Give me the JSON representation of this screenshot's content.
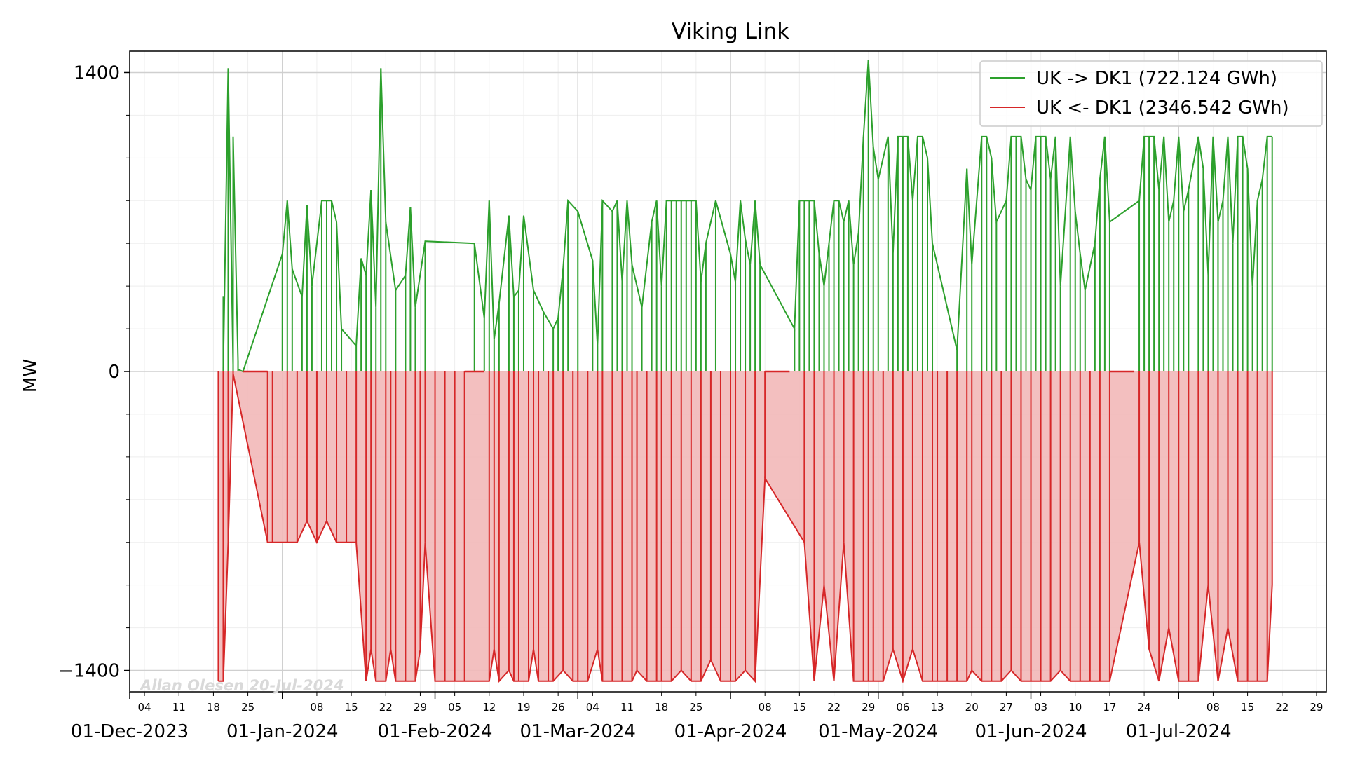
{
  "chart_data": {
    "type": "line",
    "title": "Viking Link",
    "ylabel": "MW",
    "xlabel": "",
    "ylim": [
      -1500,
      1500
    ],
    "xlim": [
      "2023-12-01",
      "2024-07-31"
    ],
    "yticks": [
      -1400,
      0,
      1400
    ],
    "ytick_labels": [
      "−1400",
      "0",
      "1400"
    ],
    "grid": true,
    "legend_position": "top-right",
    "watermark": "Allan Olesen 20-Jul-2024",
    "major_ticks": [
      {
        "date": "2023-12-01",
        "label": "01-Dec-2023"
      },
      {
        "date": "2024-01-01",
        "label": "01-Jan-2024"
      },
      {
        "date": "2024-02-01",
        "label": "01-Feb-2024"
      },
      {
        "date": "2024-03-01",
        "label": "01-Mar-2024"
      },
      {
        "date": "2024-04-01",
        "label": "01-Apr-2024"
      },
      {
        "date": "2024-05-01",
        "label": "01-May-2024"
      },
      {
        "date": "2024-06-01",
        "label": "01-Jun-2024"
      },
      {
        "date": "2024-07-01",
        "label": "01-Jul-2024"
      }
    ],
    "minor_ticks": [
      {
        "date": "2023-12-04",
        "label": "04"
      },
      {
        "date": "2023-12-11",
        "label": "11"
      },
      {
        "date": "2023-12-18",
        "label": "18"
      },
      {
        "date": "2023-12-25",
        "label": "25"
      },
      {
        "date": "2024-01-08",
        "label": "08"
      },
      {
        "date": "2024-01-15",
        "label": "15"
      },
      {
        "date": "2024-01-22",
        "label": "22"
      },
      {
        "date": "2024-01-29",
        "label": "29"
      },
      {
        "date": "2024-02-05",
        "label": "05"
      },
      {
        "date": "2024-02-12",
        "label": "12"
      },
      {
        "date": "2024-02-19",
        "label": "19"
      },
      {
        "date": "2024-02-26",
        "label": "26"
      },
      {
        "date": "2024-03-04",
        "label": "04"
      },
      {
        "date": "2024-03-11",
        "label": "11"
      },
      {
        "date": "2024-03-18",
        "label": "18"
      },
      {
        "date": "2024-03-25",
        "label": "25"
      },
      {
        "date": "2024-04-08",
        "label": "08"
      },
      {
        "date": "2024-04-15",
        "label": "15"
      },
      {
        "date": "2024-04-22",
        "label": "22"
      },
      {
        "date": "2024-04-29",
        "label": "29"
      },
      {
        "date": "2024-05-06",
        "label": "06"
      },
      {
        "date": "2024-05-13",
        "label": "13"
      },
      {
        "date": "2024-05-20",
        "label": "20"
      },
      {
        "date": "2024-05-27",
        "label": "27"
      },
      {
        "date": "2024-06-03",
        "label": "03"
      },
      {
        "date": "2024-06-10",
        "label": "10"
      },
      {
        "date": "2024-06-17",
        "label": "17"
      },
      {
        "date": "2024-06-24",
        "label": "24"
      },
      {
        "date": "2024-07-08",
        "label": "08"
      },
      {
        "date": "2024-07-15",
        "label": "15"
      },
      {
        "date": "2024-07-22",
        "label": "22"
      },
      {
        "date": "2024-07-29",
        "label": "29"
      }
    ],
    "series": [
      {
        "name": "UK -> DK1 (722.124 GWh)",
        "color": "#2ca02c",
        "x": [
          "2023-12-20",
          "2023-12-20",
          "2023-12-21",
          "2023-12-22",
          "2023-12-22",
          "2023-12-23",
          "2023-12-23",
          "2023-12-24",
          "2024-01-01",
          "2024-01-02",
          "2024-01-03",
          "2024-01-05",
          "2024-01-06",
          "2024-01-07",
          "2024-01-09",
          "2024-01-10",
          "2024-01-11",
          "2024-01-12",
          "2024-01-13",
          "2024-01-16",
          "2024-01-17",
          "2024-01-18",
          "2024-01-19",
          "2024-01-20",
          "2024-01-21",
          "2024-01-22",
          "2024-01-24",
          "2024-01-26",
          "2024-01-27",
          "2024-01-28",
          "2024-01-30",
          "2024-02-09",
          "2024-02-11",
          "2024-02-12",
          "2024-02-13",
          "2024-02-14",
          "2024-02-16",
          "2024-02-17",
          "2024-02-18",
          "2024-02-19",
          "2024-02-21",
          "2024-02-23",
          "2024-02-25",
          "2024-02-26",
          "2024-02-27",
          "2024-02-28",
          "2024-03-01",
          "2024-03-04",
          "2024-03-05",
          "2024-03-06",
          "2024-03-08",
          "2024-03-09",
          "2024-03-10",
          "2024-03-11",
          "2024-03-12",
          "2024-03-14",
          "2024-03-16",
          "2024-03-17",
          "2024-03-18",
          "2024-03-19",
          "2024-03-20",
          "2024-03-21",
          "2024-03-22",
          "2024-03-23",
          "2024-03-24",
          "2024-03-25",
          "2024-03-26",
          "2024-03-27",
          "2024-03-29",
          "2024-04-01",
          "2024-04-02",
          "2024-04-03",
          "2024-04-04",
          "2024-04-05",
          "2024-04-06",
          "2024-04-07",
          "2024-04-14",
          "2024-04-15",
          "2024-04-16",
          "2024-04-17",
          "2024-04-18",
          "2024-04-19",
          "2024-04-20",
          "2024-04-21",
          "2024-04-22",
          "2024-04-23",
          "2024-04-24",
          "2024-04-25",
          "2024-04-26",
          "2024-04-27",
          "2024-04-28",
          "2024-04-29",
          "2024-04-30",
          "2024-05-01",
          "2024-05-03",
          "2024-05-04",
          "2024-05-05",
          "2024-05-06",
          "2024-05-07",
          "2024-05-08",
          "2024-05-09",
          "2024-05-10",
          "2024-05-11",
          "2024-05-12",
          "2024-05-17",
          "2024-05-19",
          "2024-05-20",
          "2024-05-22",
          "2024-05-23",
          "2024-05-24",
          "2024-05-25",
          "2024-05-27",
          "2024-05-28",
          "2024-05-29",
          "2024-05-30",
          "2024-05-31",
          "2024-06-01",
          "2024-06-02",
          "2024-06-03",
          "2024-06-04",
          "2024-06-05",
          "2024-06-06",
          "2024-06-07",
          "2024-06-09",
          "2024-06-10",
          "2024-06-11",
          "2024-06-12",
          "2024-06-14",
          "2024-06-15",
          "2024-06-16",
          "2024-06-17",
          "2024-06-23",
          "2024-06-24",
          "2024-06-25",
          "2024-06-26",
          "2024-06-27",
          "2024-06-28",
          "2024-06-29",
          "2024-06-30",
          "2024-07-01",
          "2024-07-02",
          "2024-07-03",
          "2024-07-05",
          "2024-07-06",
          "2024-07-07",
          "2024-07-08",
          "2024-07-09",
          "2024-07-10",
          "2024-07-11",
          "2024-07-12",
          "2024-07-13",
          "2024-07-14",
          "2024-07-15",
          "2024-07-16",
          "2024-07-17",
          "2024-07-18",
          "2024-07-19",
          "2024-07-20"
        ],
        "values": [
          350,
          20,
          1420,
          30,
          1100,
          50,
          10,
          0,
          550,
          800,
          480,
          350,
          780,
          400,
          800,
          800,
          800,
          700,
          200,
          120,
          530,
          450,
          850,
          300,
          1420,
          700,
          380,
          450,
          770,
          300,
          610,
          600,
          250,
          800,
          150,
          320,
          730,
          350,
          380,
          730,
          380,
          280,
          200,
          250,
          480,
          800,
          750,
          520,
          120,
          800,
          750,
          800,
          420,
          800,
          500,
          300,
          700,
          800,
          400,
          800,
          800,
          800,
          800,
          800,
          800,
          800,
          420,
          600,
          800,
          550,
          420,
          800,
          620,
          500,
          800,
          500,
          200,
          800,
          800,
          800,
          800,
          550,
          400,
          600,
          800,
          800,
          700,
          800,
          500,
          650,
          1100,
          1460,
          1050,
          900,
          1100,
          550,
          1100,
          1100,
          1100,
          800,
          1100,
          1100,
          1000,
          600,
          100,
          950,
          500,
          1100,
          1100,
          1000,
          700,
          800,
          1100,
          1100,
          1100,
          900,
          850,
          1100,
          1100,
          1100,
          900,
          1100,
          400,
          1100,
          750,
          550,
          380,
          600,
          900,
          1100,
          700,
          800,
          1100,
          1100,
          1100,
          850,
          1100,
          700,
          800,
          1100,
          750,
          850,
          1100,
          950,
          450,
          1100,
          700,
          800,
          1100,
          600,
          1100,
          1100,
          950,
          400,
          800,
          900,
          1100,
          1100
        ]
      },
      {
        "name": "UK <- DK1 (2346.542 GWh)",
        "color": "#d62728",
        "x": [
          "2023-12-19",
          "2023-12-20",
          "2023-12-21",
          "2023-12-22",
          "2023-12-29",
          "2023-12-30",
          "2024-01-02",
          "2024-01-04",
          "2024-01-06",
          "2024-01-08",
          "2024-01-10",
          "2024-01-12",
          "2024-01-14",
          "2024-01-16",
          "2024-01-18",
          "2024-01-19",
          "2024-01-20",
          "2024-01-22",
          "2024-01-23",
          "2024-01-24",
          "2024-01-26",
          "2024-01-28",
          "2024-01-29",
          "2024-01-30",
          "2024-02-01",
          "2024-02-03",
          "2024-02-05",
          "2024-02-07",
          "2024-02-12",
          "2024-02-13",
          "2024-02-14",
          "2024-02-16",
          "2024-02-17",
          "2024-02-18",
          "2024-02-20",
          "2024-02-21",
          "2024-02-22",
          "2024-02-24",
          "2024-02-25",
          "2024-02-27",
          "2024-02-29",
          "2024-03-01",
          "2024-03-03",
          "2024-03-05",
          "2024-03-06",
          "2024-03-08",
          "2024-03-10",
          "2024-03-12",
          "2024-03-13",
          "2024-03-15",
          "2024-03-17",
          "2024-03-18",
          "2024-03-20",
          "2024-03-22",
          "2024-03-24",
          "2024-03-26",
          "2024-03-28",
          "2024-03-30",
          "2024-04-01",
          "2024-04-02",
          "2024-04-04",
          "2024-04-06",
          "2024-04-08",
          "2024-04-16",
          "2024-04-18",
          "2024-04-20",
          "2024-04-22",
          "2024-04-24",
          "2024-04-26",
          "2024-04-28",
          "2024-04-29",
          "2024-04-30",
          "2024-05-02",
          "2024-05-04",
          "2024-05-06",
          "2024-05-08",
          "2024-05-10",
          "2024-05-12",
          "2024-05-13",
          "2024-05-15",
          "2024-05-17",
          "2024-05-19",
          "2024-05-20",
          "2024-05-22",
          "2024-05-24",
          "2024-05-26",
          "2024-05-28",
          "2024-05-30",
          "2024-06-01",
          "2024-06-03",
          "2024-06-05",
          "2024-06-07",
          "2024-06-09",
          "2024-06-11",
          "2024-06-13",
          "2024-06-15",
          "2024-06-17",
          "2024-06-23",
          "2024-06-25",
          "2024-06-27",
          "2024-06-29",
          "2024-07-01",
          "2024-07-03",
          "2024-07-05",
          "2024-07-07",
          "2024-07-09",
          "2024-07-11",
          "2024-07-13",
          "2024-07-15",
          "2024-07-17",
          "2024-07-19",
          "2024-07-20"
        ],
        "values": [
          -1450,
          -1450,
          -800,
          -10,
          -800,
          -800,
          -800,
          -800,
          -700,
          -800,
          -700,
          -800,
          -800,
          -800,
          -1450,
          -1300,
          -1450,
          -1450,
          -1300,
          -1450,
          -1450,
          -1450,
          -1300,
          -800,
          -1450,
          -1450,
          -1450,
          -1450,
          -1450,
          -1300,
          -1450,
          -1400,
          -1450,
          -1450,
          -1450,
          -1300,
          -1450,
          -1450,
          -1450,
          -1400,
          -1450,
          -1450,
          -1450,
          -1300,
          -1450,
          -1450,
          -1450,
          -1450,
          -1400,
          -1450,
          -1450,
          -1450,
          -1450,
          -1400,
          -1450,
          -1450,
          -1350,
          -1450,
          -1450,
          -1450,
          -1400,
          -1450,
          -500,
          -800,
          -1450,
          -1000,
          -1450,
          -800,
          -1450,
          -1450,
          -1450,
          -1450,
          -1450,
          -1300,
          -1450,
          -1300,
          -1450,
          -1450,
          -1450,
          -1450,
          -1450,
          -1450,
          -1400,
          -1450,
          -1450,
          -1450,
          -1400,
          -1450,
          -1450,
          -1450,
          -1450,
          -1400,
          -1450,
          -1450,
          -1450,
          -1450,
          -1450,
          -800,
          -1300,
          -1450,
          -1200,
          -1450,
          -1450,
          -1450,
          -1000,
          -1450,
          -1200,
          -1450,
          -1450,
          -1450,
          -1450,
          -1000
        ]
      }
    ]
  }
}
